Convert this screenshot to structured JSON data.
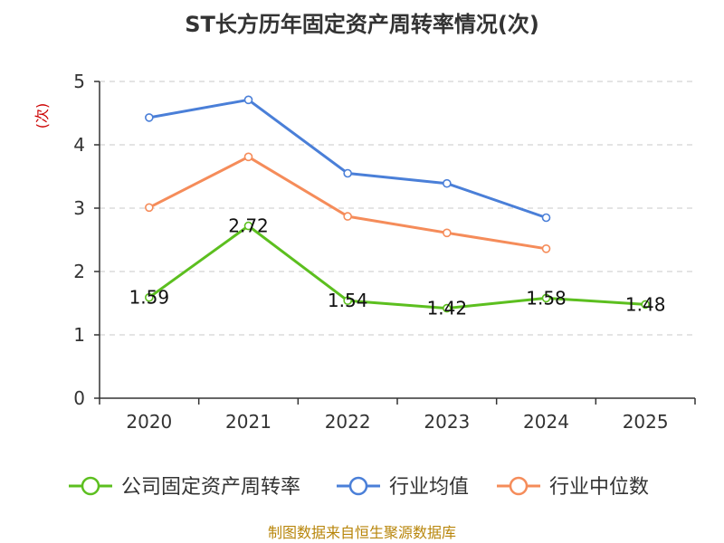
{
  "chart_data": {
    "type": "line",
    "title": "ST长方历年固定资产周转率情况(次)",
    "ylabel": "(次)",
    "xlabel": "",
    "categories": [
      "2020",
      "2021",
      "2022",
      "2023",
      "2024",
      "2025"
    ],
    "ylim": [
      0,
      5
    ],
    "yticks": [
      "0",
      "1",
      "2",
      "3",
      "4",
      "5"
    ],
    "grid": true,
    "legend_position": "bottom",
    "series": [
      {
        "name": "公司固定资产周转率",
        "color": "#5cbf1f",
        "values": [
          1.59,
          2.72,
          1.54,
          1.42,
          1.58,
          1.48
        ],
        "labels": [
          "1.59",
          "2.72",
          "1.54",
          "1.42",
          "1.58",
          "1.48"
        ]
      },
      {
        "name": "行业均值",
        "color": "#4a7fd8",
        "values": [
          4.43,
          4.71,
          3.55,
          3.39,
          2.85,
          null
        ]
      },
      {
        "name": "行业中位数",
        "color": "#f58c5a",
        "values": [
          3.01,
          3.81,
          2.87,
          2.61,
          2.36,
          null
        ]
      }
    ],
    "source": "制图数据来自恒生聚源数据库"
  }
}
